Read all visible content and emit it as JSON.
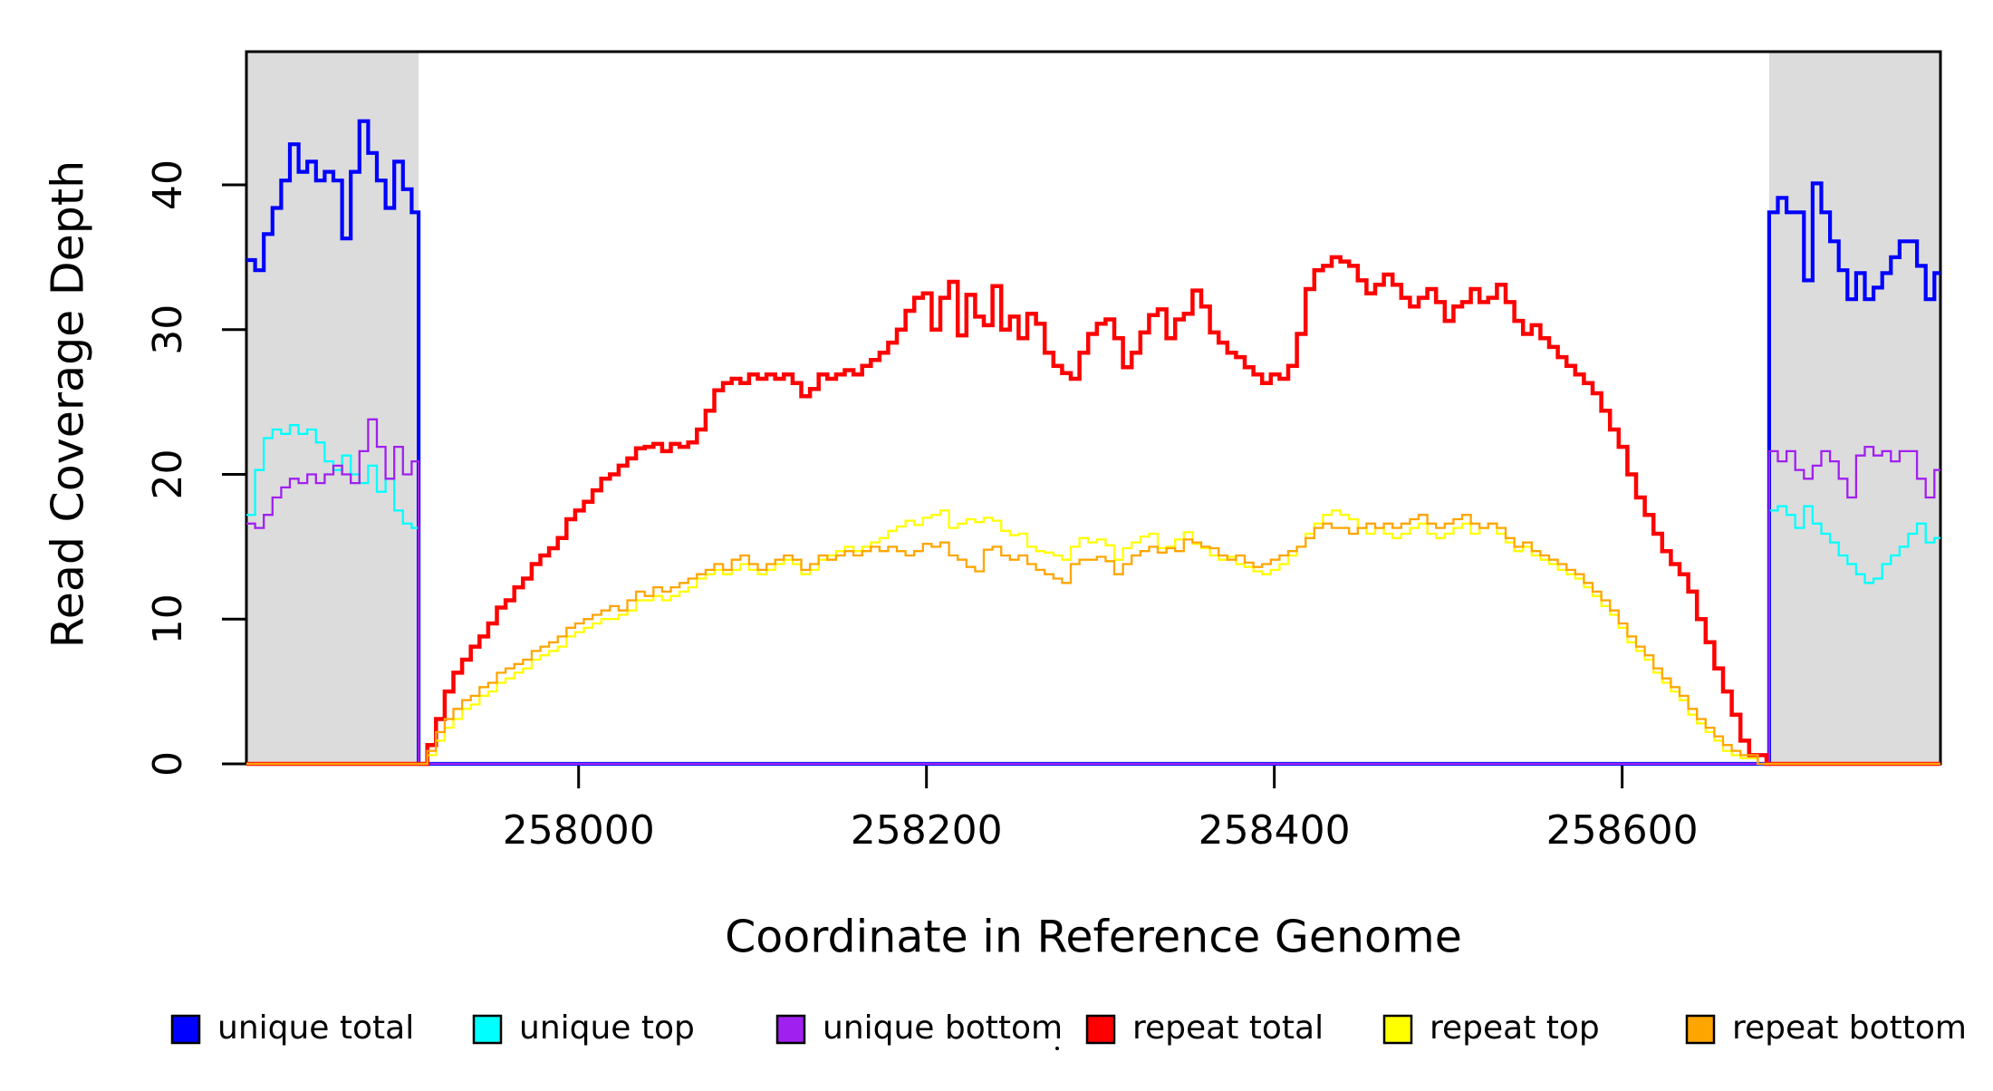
{
  "figure": {
    "background": "#FFFFFF",
    "frame_color": "#000000",
    "shaded_region_color": "#DCDCDC"
  },
  "chart_data": {
    "type": "line",
    "line_style": "step-after",
    "title": "",
    "xlabel": "Coordinate in Reference Genome",
    "ylabel": "Read Coverage Depth",
    "xlim": [
      257809,
      258783
    ],
    "ylim": [
      0,
      49.2
    ],
    "x_ticks": [
      258000,
      258200,
      258400,
      258600
    ],
    "y_ticks": [
      0,
      10,
      20,
      30,
      40
    ],
    "grid": false,
    "legend_position": "bottom",
    "shaded_regions": [
      {
        "name": "unique-region-left",
        "x0": 257809,
        "x1": 257908
      },
      {
        "name": "unique-region-right",
        "x0": 258684.5,
        "x1": 258783
      }
    ],
    "series": [
      {
        "name": "unique total",
        "color": "#0000FF",
        "line_width": 4.2,
        "segments": [
          {
            "x_start": 257809,
            "x_step": 5,
            "values": [
              34.8,
              34.1,
              36.6,
              38.4,
              40.3,
              42.8,
              40.9,
              41.6,
              40.3,
              40.9,
              40.3,
              36.3,
              40.9,
              44.4,
              42.2,
              40.3,
              38.4,
              41.6,
              39.7,
              38.1
            ]
          },
          {
            "x_start": 257908,
            "x_step": 5,
            "values": [
              0
            ]
          },
          {
            "x_start": 258684.5,
            "x_step": 5,
            "values": [
              38.1,
              39.1,
              38.1,
              38.1,
              33.4,
              40.1,
              38.1,
              36.1,
              34.1,
              32.1,
              33.9,
              32.1,
              32.9,
              33.9,
              35.0,
              36.1,
              36.1,
              34.4,
              32.1,
              33.9
            ]
          }
        ]
      },
      {
        "name": "unique top",
        "color": "#00FFFF",
        "line_width": 2.3,
        "segments": [
          {
            "x_start": 257809,
            "x_step": 5,
            "values": [
              17.2,
              20.3,
              22.5,
              23.1,
              22.8,
              23.4,
              22.8,
              23.1,
              22.2,
              20.9,
              20.3,
              21.3,
              20.0,
              19.4,
              20.6,
              18.8,
              19.7,
              17.5,
              16.6,
              16.3
            ]
          },
          {
            "x_start": 257908,
            "x_step": 5,
            "values": [
              0
            ]
          },
          {
            "x_start": 258684.5,
            "x_step": 5,
            "values": [
              17.5,
              17.8,
              17.2,
              16.3,
              17.8,
              16.6,
              15.9,
              15.3,
              14.4,
              13.8,
              13.1,
              12.5,
              12.8,
              13.8,
              14.4,
              15.0,
              15.9,
              16.6,
              15.3,
              15.6
            ]
          }
        ]
      },
      {
        "name": "unique bottom",
        "color": "#A020F0",
        "line_width": 2.3,
        "segments": [
          {
            "x_start": 257809,
            "x_step": 5,
            "values": [
              16.6,
              16.3,
              17.2,
              18.4,
              19.1,
              19.7,
              19.4,
              20.0,
              19.4,
              20.0,
              20.6,
              20.0,
              19.4,
              21.6,
              23.8,
              21.9,
              19.7,
              21.9,
              20.0,
              20.9
            ]
          },
          {
            "x_start": 257908,
            "x_step": 5,
            "values": [
              0
            ]
          },
          {
            "x_start": 258684.5,
            "x_step": 5,
            "values": [
              21.6,
              20.9,
              21.6,
              20.3,
              19.7,
              20.6,
              21.6,
              20.9,
              19.7,
              18.4,
              21.3,
              21.9,
              21.3,
              21.6,
              20.9,
              21.6,
              21.6,
              19.7,
              18.4,
              20.3
            ]
          }
        ]
      },
      {
        "name": "repeat total",
        "color": "#FF0000",
        "line_width": 4.5,
        "segments": [
          {
            "x_start": 257809,
            "x_step": 5,
            "values": [
              0
            ]
          },
          {
            "x_start": 257908,
            "x_step": 5,
            "values": [
              0,
              1.3,
              3.1,
              5.0,
              6.3,
              7.2,
              8.1,
              8.8,
              9.7,
              10.8,
              11.3,
              12.2,
              12.8,
              13.8,
              14.4,
              14.9,
              15.6,
              16.9,
              17.5,
              18.1,
              18.9,
              19.7,
              20.0,
              20.6,
              21.1,
              21.8,
              21.9,
              22.1,
              21.6,
              22.1,
              21.9,
              22.2,
              23.1,
              24.4,
              25.8,
              26.3,
              26.6,
              26.3,
              26.9,
              26.6,
              26.9,
              26.6,
              26.9,
              26.3,
              25.4,
              25.9,
              26.9,
              26.6,
              26.9,
              27.2,
              26.9,
              27.5,
              27.9,
              28.4,
              29.1,
              30.0,
              31.3,
              32.2,
              32.5,
              30.0,
              32.2,
              33.3,
              29.6,
              32.4,
              30.9,
              30.3,
              33.0,
              30.0,
              30.9,
              29.4,
              31.1,
              30.4,
              28.4,
              27.5,
              27.0,
              26.6,
              28.4,
              29.7,
              30.4,
              30.7,
              29.4,
              27.4,
              28.4,
              29.8,
              31.0,
              31.4,
              29.4,
              30.7,
              31.1,
              32.7,
              31.6,
              29.8,
              29.1,
              28.4,
              28.1,
              27.4,
              26.9,
              26.3,
              26.9,
              26.6,
              27.5,
              29.7,
              32.8,
              34.1,
              34.4,
              35.0,
              34.7,
              34.4,
              33.4,
              32.5,
              33.1,
              33.8,
              33.1,
              32.2,
              31.6,
              32.2,
              32.8,
              31.9,
              30.6,
              31.6,
              31.9,
              32.8,
              31.9,
              32.2,
              33.1,
              31.9,
              30.6,
              29.7,
              30.3,
              29.4,
              28.8,
              28.1,
              27.5,
              26.9,
              26.3,
              25.6,
              24.4,
              23.1,
              21.9,
              20.0,
              18.4,
              17.2,
              15.9,
              14.7,
              13.8,
              13.1,
              11.9,
              10.0,
              8.4,
              6.6,
              5.0,
              3.4,
              1.6,
              0.6,
              0.6,
              0
            ]
          }
        ]
      },
      {
        "name": "repeat top",
        "color": "#FFFF00",
        "line_width": 2.3,
        "segments": [
          {
            "x_start": 257809,
            "x_step": 5,
            "values": [
              0
            ]
          },
          {
            "x_start": 257908,
            "x_step": 5,
            "values": [
              0,
              0.6,
              1.6,
              2.5,
              3.1,
              3.8,
              4.1,
              4.7,
              5.0,
              5.6,
              5.9,
              6.3,
              6.6,
              7.2,
              7.5,
              7.8,
              8.1,
              8.8,
              9.1,
              9.4,
              9.7,
              10.0,
              10.0,
              10.3,
              10.6,
              11.3,
              11.3,
              11.6,
              11.3,
              11.6,
              11.9,
              12.2,
              12.8,
              13.1,
              13.4,
              13.1,
              13.4,
              13.8,
              13.4,
              13.1,
              13.4,
              13.8,
              14.1,
              13.8,
              13.1,
              13.4,
              14.1,
              14.4,
              14.7,
              15.0,
              14.7,
              15.0,
              15.3,
              15.6,
              16.1,
              16.4,
              16.8,
              16.5,
              17.0,
              17.2,
              17.5,
              16.3,
              16.6,
              16.9,
              16.7,
              17.0,
              16.8,
              16.1,
              15.8,
              15.9,
              15.0,
              14.7,
              14.6,
              14.4,
              14.1,
              15.0,
              15.6,
              15.3,
              15.5,
              15.1,
              14.1,
              14.9,
              15.3,
              15.7,
              15.9,
              14.9,
              15.0,
              15.5,
              16.0,
              15.2,
              14.9,
              14.4,
              14.1,
              14.3,
              13.8,
              13.6,
              13.3,
              13.1,
              13.4,
              13.8,
              14.4,
              15.0,
              15.9,
              16.6,
              17.2,
              17.5,
              17.2,
              16.9,
              16.3,
              15.9,
              16.3,
              15.9,
              15.6,
              15.9,
              16.3,
              16.6,
              15.9,
              15.6,
              15.9,
              16.3,
              16.6,
              15.9,
              16.3,
              16.6,
              15.9,
              15.3,
              14.7,
              15.0,
              14.4,
              14.1,
              13.8,
              13.4,
              13.1,
              12.8,
              12.2,
              11.6,
              10.9,
              10.3,
              9.4,
              8.4,
              7.8,
              7.2,
              6.3,
              5.6,
              5.0,
              4.4,
              3.4,
              2.8,
              2.2,
              1.6,
              0.9,
              0.6,
              0.4,
              0.4,
              0
            ]
          }
        ]
      },
      {
        "name": "repeat bottom",
        "color": "#FFA500",
        "line_width": 2.3,
        "segments": [
          {
            "x_start": 257809,
            "x_step": 5,
            "values": [
              0
            ]
          },
          {
            "x_start": 257908,
            "x_step": 5,
            "values": [
              0,
              0.9,
              2.2,
              3.1,
              3.8,
              4.4,
              4.7,
              5.3,
              5.6,
              6.3,
              6.6,
              6.9,
              7.2,
              7.8,
              8.1,
              8.4,
              8.8,
              9.4,
              9.7,
              10.0,
              10.3,
              10.6,
              10.9,
              10.6,
              11.3,
              11.9,
              11.6,
              12.2,
              11.9,
              12.2,
              12.5,
              12.8,
              13.1,
              13.4,
              13.8,
              13.4,
              14.1,
              14.4,
              13.8,
              13.4,
              13.8,
              14.1,
              14.4,
              14.1,
              13.4,
              13.8,
              14.4,
              14.1,
              14.4,
              14.7,
              14.4,
              14.7,
              15.0,
              14.7,
              15.0,
              14.7,
              14.4,
              14.7,
              15.2,
              15.0,
              15.3,
              14.4,
              14.1,
              13.6,
              13.3,
              14.8,
              15.0,
              14.4,
              14.1,
              14.4,
              13.8,
              13.4,
              13.1,
              12.8,
              12.5,
              13.8,
              14.1,
              14.1,
              14.3,
              14.0,
              13.1,
              13.8,
              14.4,
              14.7,
              15.0,
              14.6,
              14.9,
              14.7,
              15.5,
              15.3,
              15.0,
              14.9,
              14.4,
              14.1,
              14.4,
              13.9,
              13.6,
              13.8,
              14.1,
              14.4,
              14.7,
              15.0,
              15.6,
              16.3,
              16.6,
              16.3,
              16.3,
              15.9,
              16.3,
              16.6,
              16.3,
              16.6,
              16.3,
              16.6,
              16.9,
              17.2,
              16.6,
              16.3,
              16.6,
              16.9,
              17.2,
              16.6,
              16.3,
              16.6,
              16.3,
              15.6,
              15.0,
              15.3,
              14.7,
              14.4,
              14.1,
              13.8,
              13.4,
              13.1,
              12.5,
              11.9,
              11.3,
              10.6,
              9.7,
              8.8,
              8.1,
              7.5,
              6.6,
              5.9,
              5.3,
              4.7,
              3.8,
              3.1,
              2.5,
              1.9,
              1.3,
              0.9,
              0.6,
              0.6,
              0
            ]
          }
        ]
      }
    ]
  },
  "legend": {
    "items": [
      {
        "label": "unique total",
        "color": "#0000FF"
      },
      {
        "label": "unique top",
        "color": "#00FFFF"
      },
      {
        "label": "unique bottom",
        "color": "#A020F0"
      },
      {
        "label": "repeat total",
        "color": "#FF0000"
      },
      {
        "label": "repeat top",
        "color": "#FFFF00"
      },
      {
        "label": "repeat bottom",
        "color": "#FFA500"
      }
    ],
    "marker_border_color": "#000000",
    "stray_mark": {
      "color": "#000000"
    }
  }
}
